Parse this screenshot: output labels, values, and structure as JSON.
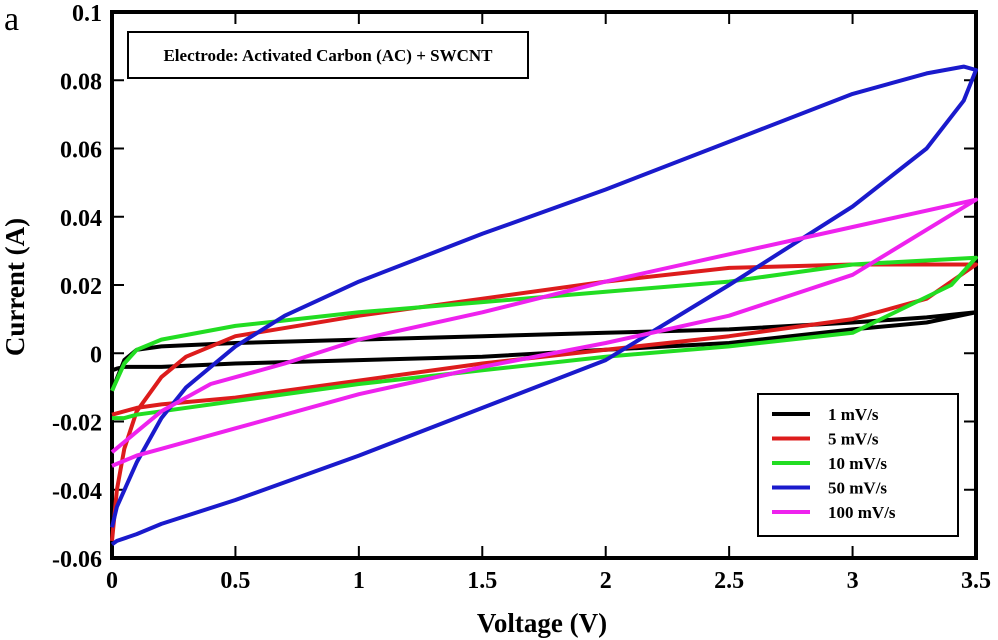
{
  "panel_label": "a",
  "chart_data": {
    "type": "line",
    "title": "",
    "annotation": "Electrode: Activated Carbon (AC) + SWCNT",
    "xlabel": "Voltage (V)",
    "ylabel": "Current (A)",
    "xlim": [
      0,
      3.5
    ],
    "ylim": [
      -0.06,
      0.1
    ],
    "xticks": [
      "0",
      "0.5",
      "1",
      "1.5",
      "2",
      "2.5",
      "3",
      "3.5"
    ],
    "xtick_values": [
      0,
      0.5,
      1,
      1.5,
      2,
      2.5,
      3,
      3.5
    ],
    "yticks": [
      "-0.06",
      "-0.04",
      "-0.02",
      "0",
      "0.02",
      "0.04",
      "0.06",
      "0.08",
      "0.1"
    ],
    "ytick_values": [
      -0.06,
      -0.04,
      -0.02,
      0,
      0.02,
      0.04,
      0.06,
      0.08,
      0.1
    ],
    "legend_position": "bottom-right",
    "series": [
      {
        "name": "1 mV/s",
        "color": "#000000",
        "x": [
          0,
          0.05,
          0.1,
          0.2,
          0.5,
          1,
          1.5,
          2,
          2.5,
          3,
          3.3,
          3.5,
          3.5,
          3.3,
          3,
          2.5,
          2,
          1.5,
          1,
          0.5,
          0.2,
          0.1,
          0.05,
          0.02,
          0
        ],
        "y": [
          -0.011,
          -0.002,
          0.001,
          0.002,
          0.003,
          0.004,
          0.005,
          0.006,
          0.007,
          0.009,
          0.0105,
          0.012,
          0.012,
          0.009,
          0.007,
          0.003,
          0.001,
          -0.001,
          -0.002,
          -0.003,
          -0.004,
          -0.004,
          -0.004,
          -0.0045,
          -0.005
        ]
      },
      {
        "name": "5 mV/s",
        "color": "#dd1c1c",
        "x": [
          0,
          0.02,
          0.05,
          0.1,
          0.2,
          0.3,
          0.5,
          1,
          1.5,
          2,
          2.5,
          3,
          3.5,
          3.5,
          3.3,
          3,
          2.5,
          2,
          1.5,
          1,
          0.5,
          0.2,
          0.1,
          0.05,
          0
        ],
        "y": [
          -0.055,
          -0.04,
          -0.028,
          -0.017,
          -0.007,
          -0.001,
          0.005,
          0.011,
          0.016,
          0.021,
          0.025,
          0.026,
          0.026,
          0.026,
          0.016,
          0.01,
          0.005,
          0.001,
          -0.003,
          -0.008,
          -0.013,
          -0.015,
          -0.016,
          -0.017,
          -0.018
        ]
      },
      {
        "name": "10 mV/s",
        "color": "#22dd22",
        "x": [
          0,
          0.05,
          0.1,
          0.2,
          0.5,
          1,
          1.5,
          2,
          2.5,
          3,
          3.5,
          3.5,
          3.4,
          3,
          2.5,
          2,
          1.5,
          1,
          0.5,
          0.2,
          0.1,
          0.05,
          0
        ],
        "y": [
          -0.011,
          -0.003,
          0.001,
          0.004,
          0.008,
          0.012,
          0.015,
          0.018,
          0.021,
          0.026,
          0.028,
          0.028,
          0.02,
          0.006,
          0.002,
          -0.001,
          -0.005,
          -0.009,
          -0.014,
          -0.017,
          -0.018,
          -0.019,
          -0.019
        ]
      },
      {
        "name": "50 mV/s",
        "color": "#1a1acc",
        "x": [
          0,
          0.02,
          0.1,
          0.2,
          0.3,
          0.5,
          0.7,
          1,
          1.5,
          2,
          2.5,
          3,
          3.3,
          3.45,
          3.5,
          3.5,
          3.45,
          3.3,
          3,
          2.5,
          2,
          1.5,
          1,
          0.5,
          0.2,
          0.1,
          0.02,
          0
        ],
        "y": [
          -0.051,
          -0.045,
          -0.032,
          -0.019,
          -0.01,
          0.002,
          0.011,
          0.021,
          0.035,
          0.048,
          0.062,
          0.076,
          0.082,
          0.084,
          0.083,
          0.083,
          0.074,
          0.06,
          0.043,
          0.02,
          -0.002,
          -0.016,
          -0.03,
          -0.043,
          -0.05,
          -0.053,
          -0.055,
          -0.056
        ]
      },
      {
        "name": "100 mV/s",
        "color": "#ee22ee",
        "x": [
          0,
          0.1,
          0.2,
          0.4,
          0.7,
          1,
          1.5,
          2,
          2.5,
          3,
          3.5,
          3.5,
          3,
          2.5,
          2,
          1.5,
          1,
          0.5,
          0.2,
          0.1,
          0
        ],
        "y": [
          -0.029,
          -0.023,
          -0.017,
          -0.009,
          -0.003,
          0.004,
          0.012,
          0.021,
          0.029,
          0.037,
          0.045,
          0.045,
          0.023,
          0.011,
          0.003,
          -0.004,
          -0.012,
          -0.022,
          -0.028,
          -0.03,
          -0.033
        ]
      }
    ]
  }
}
